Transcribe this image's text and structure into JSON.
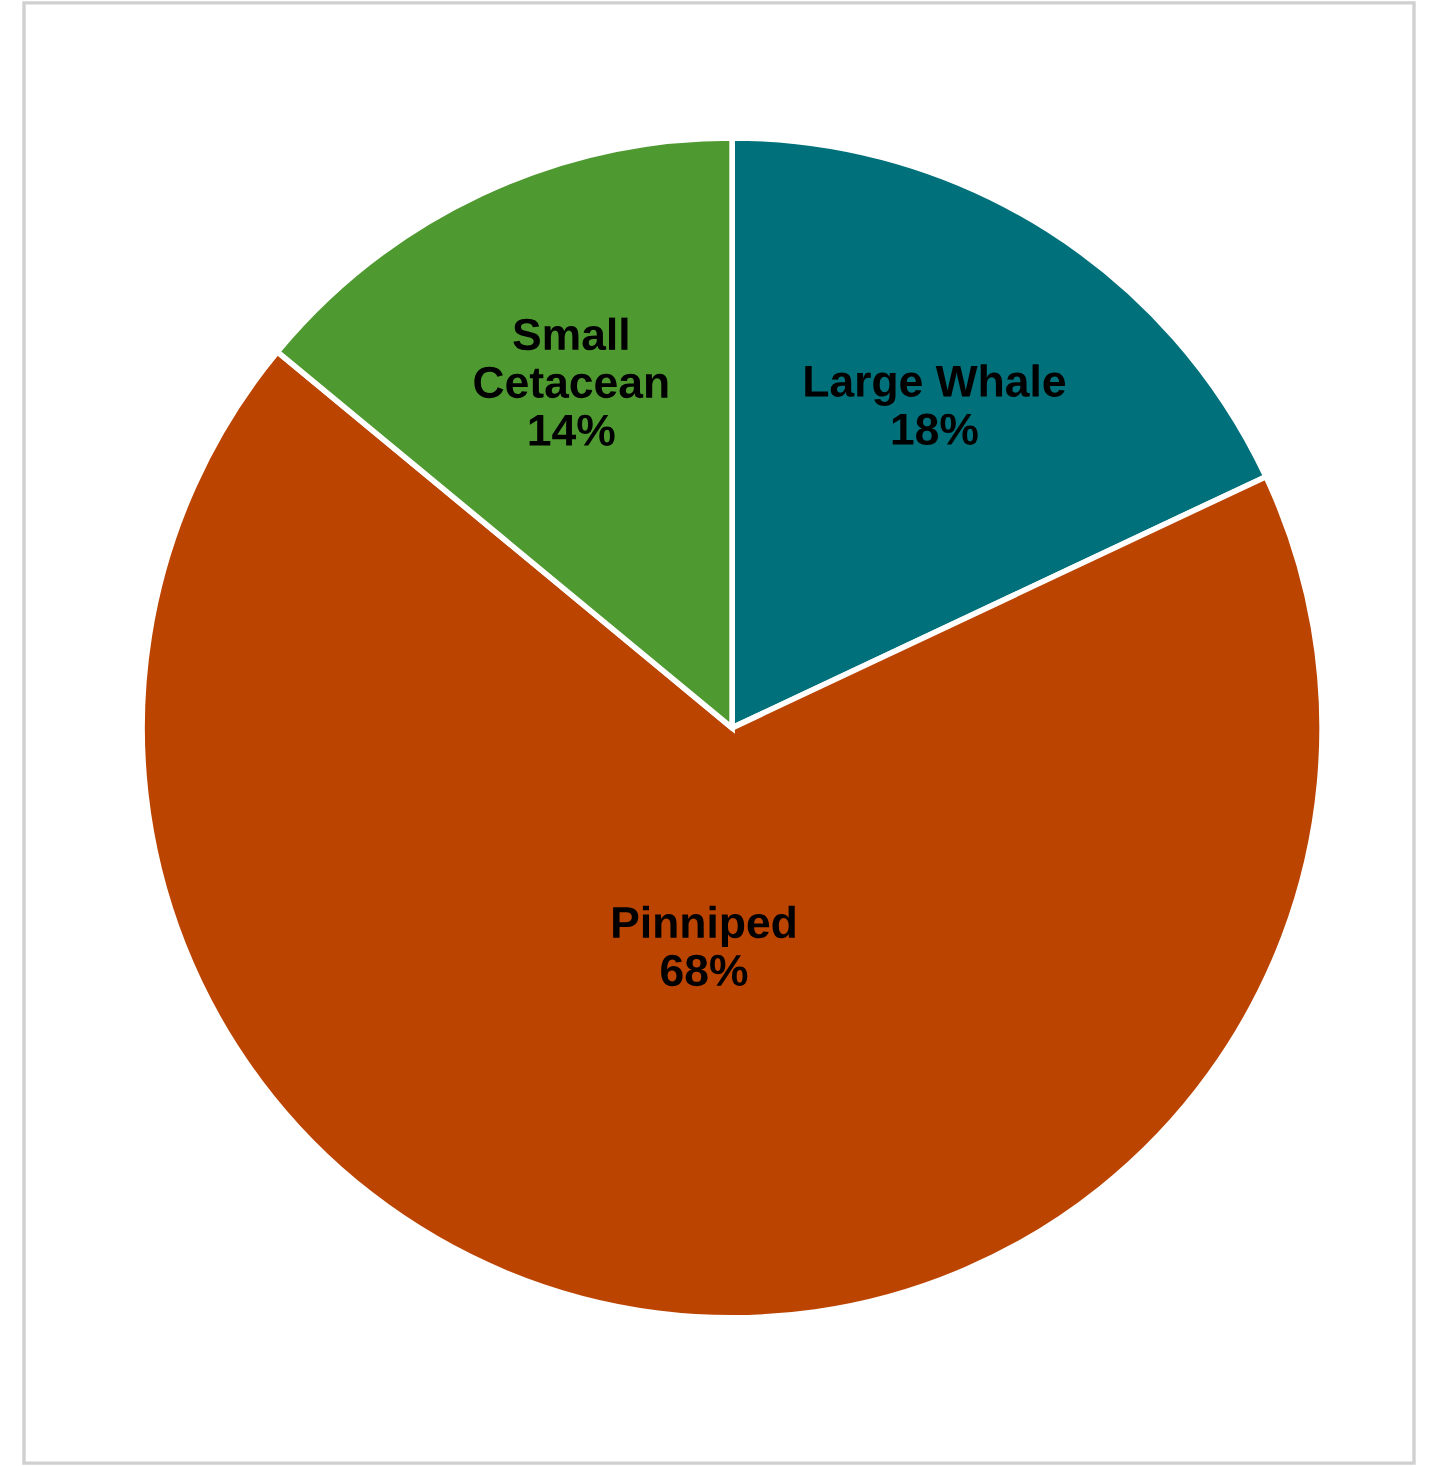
{
  "chart_data": {
    "type": "pie",
    "categories": [
      "Large Whale",
      "Pinniped",
      "Small Cetacean"
    ],
    "values": [
      18,
      68,
      14
    ],
    "colors": [
      "#00707a",
      "#bb4400",
      "#4e9a31"
    ],
    "value_labels": [
      "18%",
      "68%",
      "14%"
    ],
    "legend": false
  }
}
